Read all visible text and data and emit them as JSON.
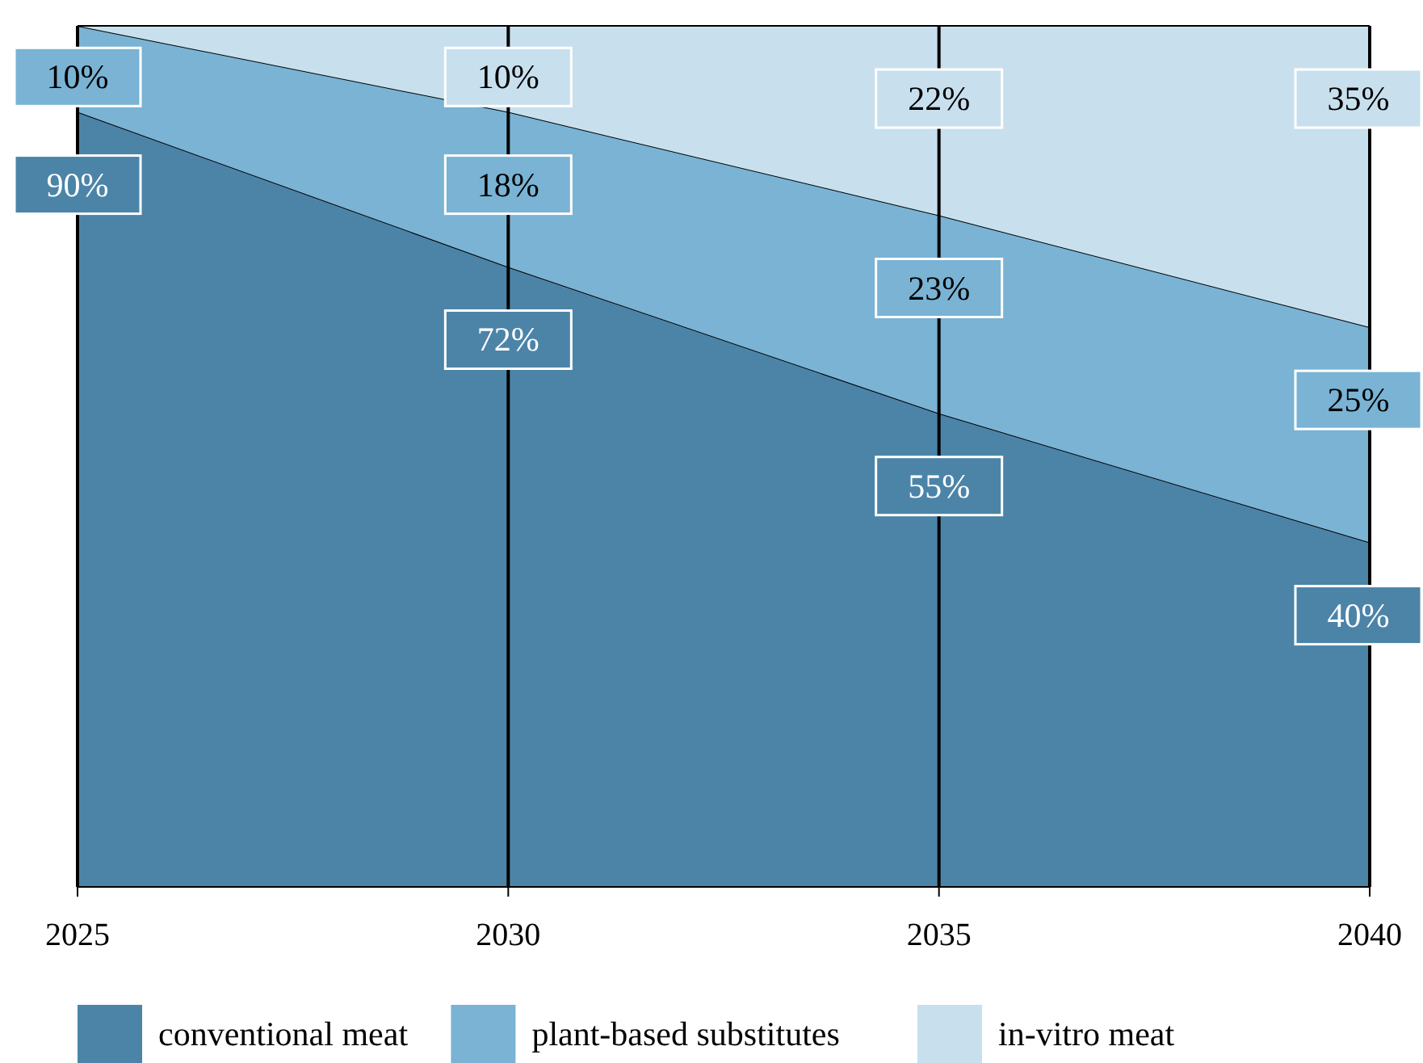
{
  "chart_data": {
    "type": "area",
    "stacked": true,
    "categories": [
      "2025",
      "2030",
      "2035",
      "2040"
    ],
    "grid": "x",
    "legend": "bottom",
    "series": [
      {
        "name": "conventional meat",
        "color": "#4c84a8",
        "values": [
          90,
          72,
          55,
          40
        ],
        "value_labels": [
          "90%",
          "72%",
          "55%",
          "40%"
        ]
      },
      {
        "name": "plant-based substitutes",
        "color": "#7ab3d4",
        "values": [
          10,
          18,
          23,
          25
        ],
        "value_labels": [
          "10%",
          "18%",
          "23%",
          "25%"
        ]
      },
      {
        "name": "in-vitro meat",
        "color": "#c8e0ee",
        "values": [
          0,
          10,
          22,
          35
        ],
        "value_labels": [
          null,
          "10%",
          "22%",
          "35%"
        ]
      }
    ]
  }
}
